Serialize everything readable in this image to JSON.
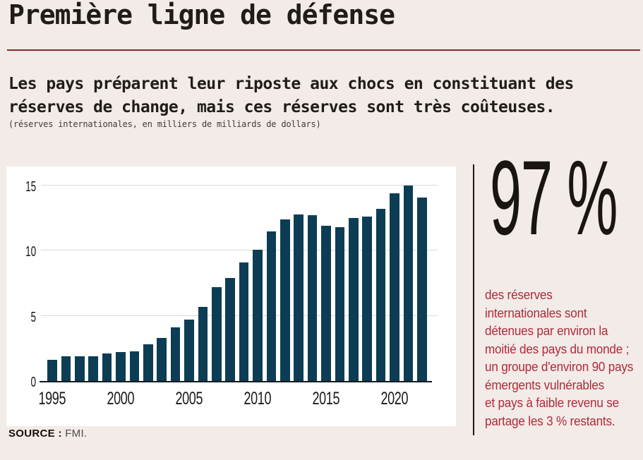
{
  "header": {
    "title": "Première ligne de défense",
    "subtitle_line1": "Les pays préparent leur riposte aux chocs en constituant des",
    "subtitle_line2": "réserves de change, mais ces réserves sont très coûteuses.",
    "caption": "(réserves internationales, en milliers de milliards de dollars)"
  },
  "chart_data": {
    "type": "bar",
    "title": "Première ligne de défense",
    "subtitle": "Les pays préparent leur riposte aux chocs en constituant des réserves de change, mais ces réserves sont très coûteuses.",
    "unit_label": "réserves internationales, en milliers de milliards de dollars",
    "x": [
      1995,
      1996,
      1997,
      1998,
      1999,
      2000,
      2001,
      2002,
      2003,
      2004,
      2005,
      2006,
      2007,
      2008,
      2009,
      2010,
      2011,
      2012,
      2013,
      2014,
      2015,
      2016,
      2017,
      2018,
      2019,
      2020,
      2021,
      2022
    ],
    "values": [
      1.6,
      1.9,
      1.9,
      1.9,
      2.1,
      2.2,
      2.3,
      2.8,
      3.3,
      4.1,
      4.7,
      5.7,
      7.2,
      7.9,
      9.1,
      10.1,
      11.5,
      12.4,
      12.8,
      12.7,
      11.9,
      11.8,
      12.5,
      12.6,
      13.2,
      14.4,
      15.0,
      14.1
    ],
    "ylim": [
      0,
      15
    ],
    "yticks": [
      0,
      5,
      10,
      15
    ],
    "xticks": [
      1995,
      2000,
      2005,
      2010,
      2015,
      2020
    ],
    "grid": "horizontal",
    "legend": "none",
    "bar_color": "#0d3d55"
  },
  "stat": {
    "value": "97 %",
    "description_lines": [
      "des réserves",
      "internationales sont",
      "détenues par environ la",
      "moitié des pays du monde ;",
      "un groupe d'environ 90 pays",
      "émergents vulnérables",
      "et pays à faible revenu se",
      "partage les 3 % restants."
    ]
  },
  "source": {
    "label": "SOURCE :",
    "value": "FMI."
  },
  "colors": {
    "background": "#f2ebe7",
    "bar": "#0d3d55",
    "title_rule_red": "#8e212f",
    "stat_text_red": "#b02a3a",
    "ink": "#201c1a",
    "grid_line": "#d9d9d9",
    "source_value_gray": "#4c4c4c"
  }
}
